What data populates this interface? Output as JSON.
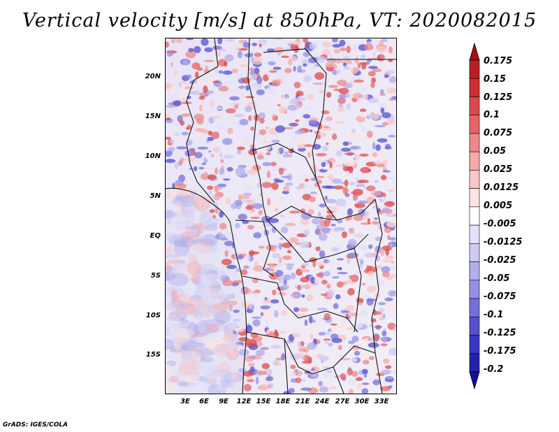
{
  "title": "Vertical velocity [m/s] at 850hPa, VT: 2020082015",
  "map": {
    "region": "Central and Southern Africa",
    "field": "Vertical velocity at 850hPa",
    "lat_ticks": [
      "20N",
      "15N",
      "10N",
      "5N",
      "EQ",
      "5S",
      "10S",
      "15S"
    ],
    "lon_ticks": [
      "3E",
      "6E",
      "9E",
      "12E",
      "15E",
      "18E",
      "21E",
      "24E",
      "27E",
      "30E",
      "33E"
    ]
  },
  "colorbar": {
    "levels": [
      "0.175",
      "0.15",
      "0.125",
      "0.1",
      "0.075",
      "0.05",
      "0.025",
      "0.0125",
      "0.005",
      "-0.005",
      "-0.0125",
      "-0.025",
      "-0.05",
      "-0.075",
      "-0.1",
      "-0.125",
      "-0.175",
      "-0.2"
    ],
    "colors": [
      "#a01010",
      "#b82020",
      "#cc3030",
      "#dc4a4a",
      "#e66464",
      "#ee8888",
      "#f4a8a8",
      "#f8c8c8",
      "#fce4e4",
      "#ffffff",
      "#e4e2f8",
      "#cccaf2",
      "#b0aeec",
      "#9490e4",
      "#7470da",
      "#5450d0",
      "#3a36c4",
      "#2420b0",
      "#140fa0"
    ]
  },
  "credit": "GrADS: IGES/COLA"
}
